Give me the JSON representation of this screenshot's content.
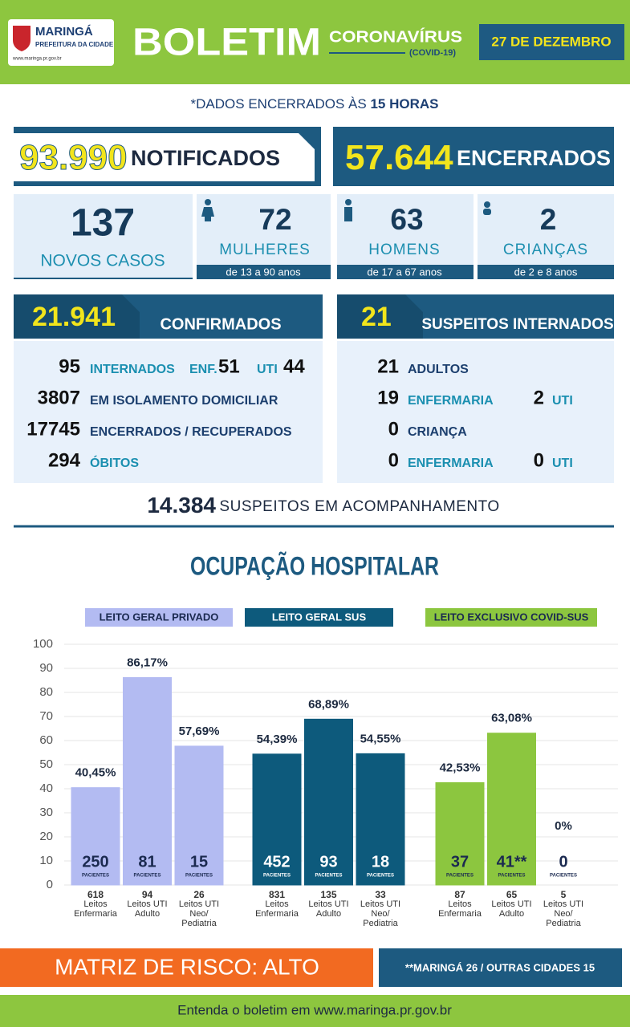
{
  "header": {
    "city": "MARINGÁ",
    "city_sub": "PREFEITURA DA CIDADE",
    "website": "www.maringa.pr.gov.br",
    "title": "BOLETIM",
    "topic": "CORONAVÍRUS",
    "topic_sub": "(COVID-19)",
    "date": "27 DE DEZEMBRO"
  },
  "cutoff": {
    "text": "*DADOS ENCERRADOS ÀS",
    "time": "15 HORAS"
  },
  "totals": [
    {
      "value": "93.990",
      "label": "NOTIFICADOS"
    },
    {
      "value": "57.644",
      "label": "ENCERRADOS"
    }
  ],
  "new_cases": {
    "value": 137,
    "label": "NOVOS CASOS",
    "groups": [
      {
        "value": 72,
        "label": "MULHERES",
        "ages": "de 13 a 90 anos"
      },
      {
        "value": 63,
        "label": "HOMENS",
        "ages": "de 17 a 67 anos"
      },
      {
        "value": 2,
        "label": "CRIANÇAS",
        "ages": "de 2 e 8 anos"
      }
    ]
  },
  "confirmed": {
    "value": "21.941",
    "label": "CONFIRMADOS",
    "rows": [
      {
        "value": 95,
        "label": "INTERNADOS",
        "ward_label": "ENF.",
        "ward": 51,
        "icu_label": "UTI",
        "icu": 44
      },
      {
        "value": 3807,
        "label": "EM ISOLAMENTO DOMICILIAR"
      },
      {
        "value": 17745,
        "label": "ENCERRADOS / RECUPERADOS"
      },
      {
        "value": 294,
        "label": "ÓBITOS"
      }
    ]
  },
  "suspects": {
    "value": 21,
    "label": "SUSPEITOS INTERNADOS",
    "rows": [
      {
        "value": 21,
        "label": "ADULTOS"
      },
      {
        "value": 19,
        "label": "ENFERMARIA",
        "icu": 2,
        "icu_label": "UTI"
      },
      {
        "value": 0,
        "label": "CRIANÇA"
      },
      {
        "value": 0,
        "label": "ENFERMARIA",
        "icu": 0,
        "icu_label": "UTI"
      }
    ]
  },
  "monitoring": {
    "value": "14.384",
    "label": "SUSPEITOS EM ACOMPANHAMENTO"
  },
  "chart_data": {
    "type": "bar",
    "title": "OCUPAÇÃO HOSPITALAR",
    "ylim": [
      0,
      100
    ],
    "yticks": [
      0,
      10,
      20,
      30,
      40,
      50,
      60,
      70,
      80,
      90,
      100
    ],
    "grid": true,
    "patients_label": "PACIENTES",
    "panels": [
      {
        "name": "LEITO GERAL PRIVADO",
        "color": "#b3bbf2",
        "label_color": "#1b2a50",
        "categories": [
          "Leitos Enfermaria",
          "Leitos UTI Adulto",
          "Leitos UTI Neo/ Pediatria"
        ],
        "beds": [
          618,
          94,
          26
        ],
        "patients": [
          250,
          81,
          15
        ],
        "values": [
          40.45,
          86.17,
          57.69
        ],
        "value_labels": [
          "40,45%",
          "86,17%",
          "57,69%"
        ]
      },
      {
        "name": "LEITO GERAL SUS",
        "color": "#0d5a7c",
        "label_color": "#ffffff",
        "categories": [
          "Leitos Enfermaria",
          "Leitos UTI Adulto",
          "Leitos UTI Neo/ Pediatria"
        ],
        "beds": [
          831,
          135,
          33
        ],
        "patients": [
          452,
          93,
          18
        ],
        "values": [
          54.39,
          68.89,
          54.55
        ],
        "value_labels": [
          "54,39%",
          "68,89%",
          "54,55%"
        ]
      },
      {
        "name": "LEITO EXCLUSIVO COVID-SUS",
        "color": "#8cc63f",
        "label_color": "#1b2a50",
        "categories": [
          "Leitos Enfermaria",
          "Leitos UTI Adulto",
          "Leitos UTI Neo/ Pediatria"
        ],
        "beds": [
          87,
          65,
          5
        ],
        "patients": [
          37,
          41,
          0
        ],
        "patient_labels": [
          "37",
          "41**",
          "0"
        ],
        "values": [
          42.53,
          63.08,
          0
        ],
        "value_labels": [
          "42,53%",
          "63,08%",
          "0%"
        ]
      }
    ]
  },
  "footer": {
    "risk": "MATRIZ DE RISCO: ALTO",
    "origin": "**MARINGÁ 26 / OUTRAS CIDADES 15",
    "link": "Entenda o boletim em www.maringa.pr.gov.br"
  }
}
